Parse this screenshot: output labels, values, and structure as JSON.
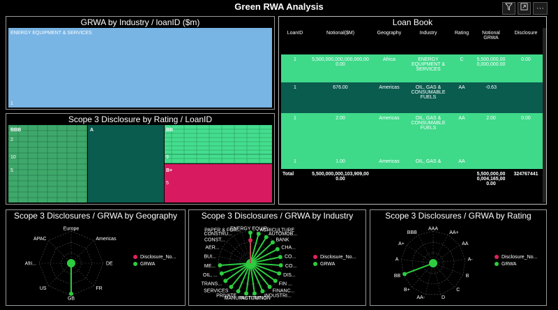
{
  "page_title": "Green RWA Analysis",
  "toolbar": {
    "filter_icon": "filter-icon",
    "focus_icon": "focus-mode-icon",
    "more_icon": "more-options-icon",
    "more_label": "···"
  },
  "grwa_industry": {
    "title": "GRWA by Industry / loanID ($m)",
    "tile_label": "ENERGY EQUIPMENT & SERVICES",
    "tile_sub": "1",
    "color": "#78b4e4"
  },
  "scope3_rating": {
    "title": "Scope 3 Disclosure by Rating / LoanID",
    "labels": {
      "bbb": "BBB",
      "a": "A",
      "bb": "BB",
      "bplus": "B+",
      "n2": "2",
      "n10": "10",
      "n5": "5",
      "n9": "9",
      "n5b": "5"
    }
  },
  "loan_book": {
    "title": "Loan Book",
    "columns": [
      "LoanID",
      "Notional($M)",
      "Geography",
      "Industry",
      "Rating",
      "Notional GRWA",
      "Disclosure"
    ],
    "rows": [
      [
        "1",
        "5,500,000,000,000,000,000.00",
        "Africa",
        "ENERGY EQUIPMENT & SERVICES",
        "C",
        "5,500,000,000,000,000.00",
        "0.00"
      ],
      [
        "1",
        "676.00",
        "Americas",
        "OIL, GAS & CONSUMABLE FUELS",
        "AA",
        "-0.63",
        ""
      ],
      [
        "1",
        "2.00",
        "Americas",
        "OIL, GAS & CONSUMABLE FUELS",
        "AA",
        "2.00",
        "0.00"
      ],
      [
        "1",
        "1.00",
        "Americas",
        "OIL, GAS &",
        "AA",
        "",
        ""
      ]
    ],
    "total": [
      "Total",
      "5,500,000,000,103,909,000.00",
      "",
      "",
      "",
      "5,500,000,000,004,165,000.00",
      "324767441"
    ]
  },
  "geo": {
    "title": "Scope 3 Disclosures / GRWA by Geography",
    "labels": [
      "Europe",
      "Americas",
      "DE",
      "FR",
      "GB",
      "US",
      "Afri...",
      "APAC"
    ]
  },
  "ind": {
    "title": "Scope 3 Disclosures / GRWA by Industry",
    "labels": [
      "ENERGY EQUIP...",
      "AGRICULTURE",
      "AUTOMOB...",
      "BANK",
      "CHA...",
      "CO...",
      "CO...",
      "DIS...",
      "FIN ...",
      "FINANC...",
      "INDUSTRI...",
      "INSTITUTION",
      "MANUFACTURING",
      "PRIVATE",
      "SERVICES",
      "TRANS...",
      "OIL, ...",
      "ME...",
      "BUI...",
      "AER...",
      "CONST...",
      "CONSTRU...",
      "PAPER & FOR..."
    ]
  },
  "rat": {
    "title": "Scope 3 Disclosures / GRWA by Rating",
    "labels": [
      "AAA",
      "AA+",
      "AA",
      "A-",
      "B",
      "C",
      "D",
      "AA-",
      "B+",
      "BB",
      "A",
      "A+",
      "BBB"
    ]
  },
  "legend": {
    "disclosure": "Disclosure_No...",
    "grwa": "GRWA"
  },
  "colors": {
    "disclosure": "#e0245e",
    "grwa": "#2ecc40",
    "green_light": "#3fd98a",
    "green_dark": "#0a5c4e",
    "pink": "#d81b60"
  }
}
